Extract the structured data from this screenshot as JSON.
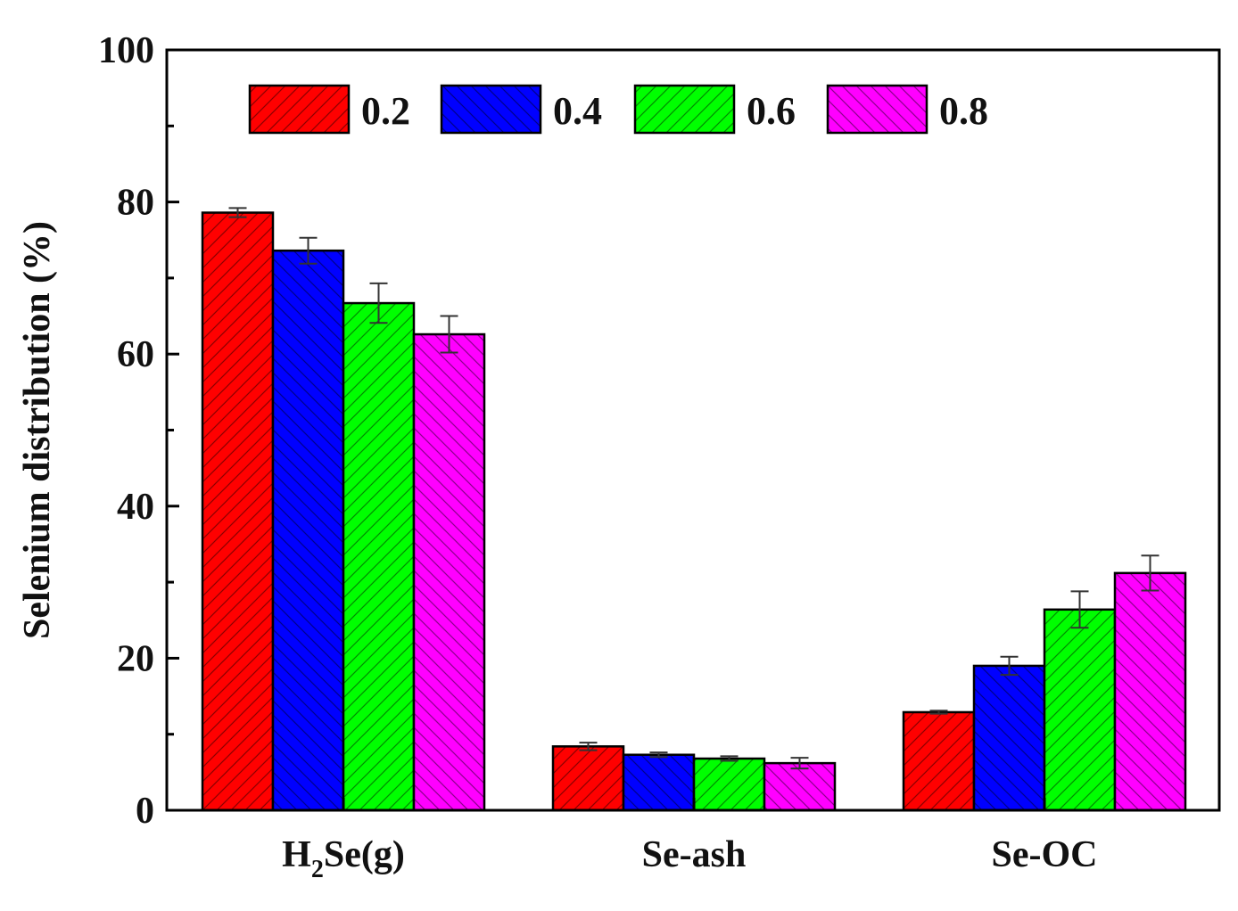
{
  "chart_data": {
    "type": "bar",
    "categories": [
      "H2Se(g)",
      "Se-ash",
      "Se-OC"
    ],
    "category_labels": [
      {
        "main": "H",
        "sub": "2",
        "rest": "Se(g)"
      },
      {
        "main": "Se-ash",
        "sub": "",
        "rest": ""
      },
      {
        "main": "Se-OC",
        "sub": "",
        "rest": ""
      }
    ],
    "series": [
      {
        "name": "0.2",
        "color": "#ff0000",
        "hatch": "forward",
        "values": [
          78.6,
          8.4,
          12.9
        ],
        "errors": [
          0.6,
          0.5,
          0.2
        ]
      },
      {
        "name": "0.4",
        "color": "#0000ff",
        "hatch": "backward",
        "values": [
          73.6,
          7.3,
          19.0
        ],
        "errors": [
          1.7,
          0.3,
          1.2
        ]
      },
      {
        "name": "0.6",
        "color": "#00ff00",
        "hatch": "forward",
        "values": [
          66.7,
          6.8,
          26.4
        ],
        "errors": [
          2.6,
          0.3,
          2.4
        ]
      },
      {
        "name": "0.8",
        "color": "#ff00ff",
        "hatch": "backward",
        "values": [
          62.6,
          6.2,
          31.2
        ],
        "errors": [
          2.4,
          0.7,
          2.3
        ]
      }
    ],
    "ylabel": "Selenium distribution (%)",
    "xlabel": "",
    "ylim": [
      0,
      100
    ],
    "yticks": [
      0,
      20,
      40,
      60,
      80,
      100
    ],
    "legend": {
      "placement": "top-left",
      "orientation": "horizontal"
    },
    "grid": false
  }
}
